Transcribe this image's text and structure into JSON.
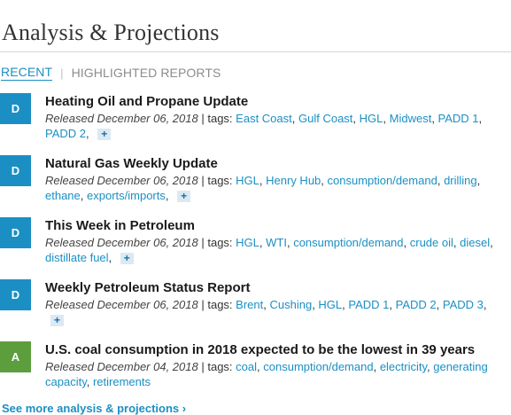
{
  "header": {
    "title": "Analysis & Projections"
  },
  "tabs": [
    {
      "label": "RECENT",
      "active": true
    },
    {
      "label": "HIGHLIGHTED REPORTS",
      "active": false
    }
  ],
  "tab_separator": "|",
  "colors": {
    "badge_d": "#1b8fc4",
    "badge_a": "#5c9e3d",
    "accent_link": "#1b8fc4"
  },
  "items": [
    {
      "badge": "D",
      "badge_color": "#1b8fc4",
      "title": "Heating Oil and Propane Update",
      "released": "Released December 06, 2018",
      "tags_label": "| tags:",
      "tags": [
        "East Coast",
        "Gulf Coast",
        "HGL",
        "Midwest",
        "PADD 1",
        "PADD 2"
      ],
      "more_icon": "+"
    },
    {
      "badge": "D",
      "badge_color": "#1b8fc4",
      "title": "Natural Gas Weekly Update",
      "released": "Released December 06, 2018",
      "tags_label": "| tags:",
      "tags": [
        "HGL",
        "Henry Hub",
        "consumption/demand",
        "drilling",
        "ethane",
        "exports/imports"
      ],
      "more_icon": "+"
    },
    {
      "badge": "D",
      "badge_color": "#1b8fc4",
      "title": "This Week in Petroleum",
      "released": "Released December 06, 2018",
      "tags_label": "| tags:",
      "tags": [
        "HGL",
        "WTI",
        "consumption/demand",
        "crude oil",
        "diesel",
        "distillate fuel"
      ],
      "more_icon": "+"
    },
    {
      "badge": "D",
      "badge_color": "#1b8fc4",
      "title": "Weekly Petroleum Status Report",
      "released": "Released December 06, 2018",
      "tags_label": "| tags:",
      "tags": [
        "Brent",
        "Cushing",
        "HGL",
        "PADD 1",
        "PADD 2",
        "PADD 3"
      ],
      "more_icon": "+"
    },
    {
      "badge": "A",
      "badge_color": "#5c9e3d",
      "title": "U.S. coal consumption in 2018 expected to be the lowest in 39 years",
      "released": "Released December 04, 2018",
      "tags_label": "| tags:",
      "tags": [
        "coal",
        "consumption/demand",
        "electricity",
        "generating capacity",
        "retirements"
      ],
      "more_icon": ""
    }
  ],
  "footer": {
    "see_more": "See more analysis & projections ›"
  }
}
